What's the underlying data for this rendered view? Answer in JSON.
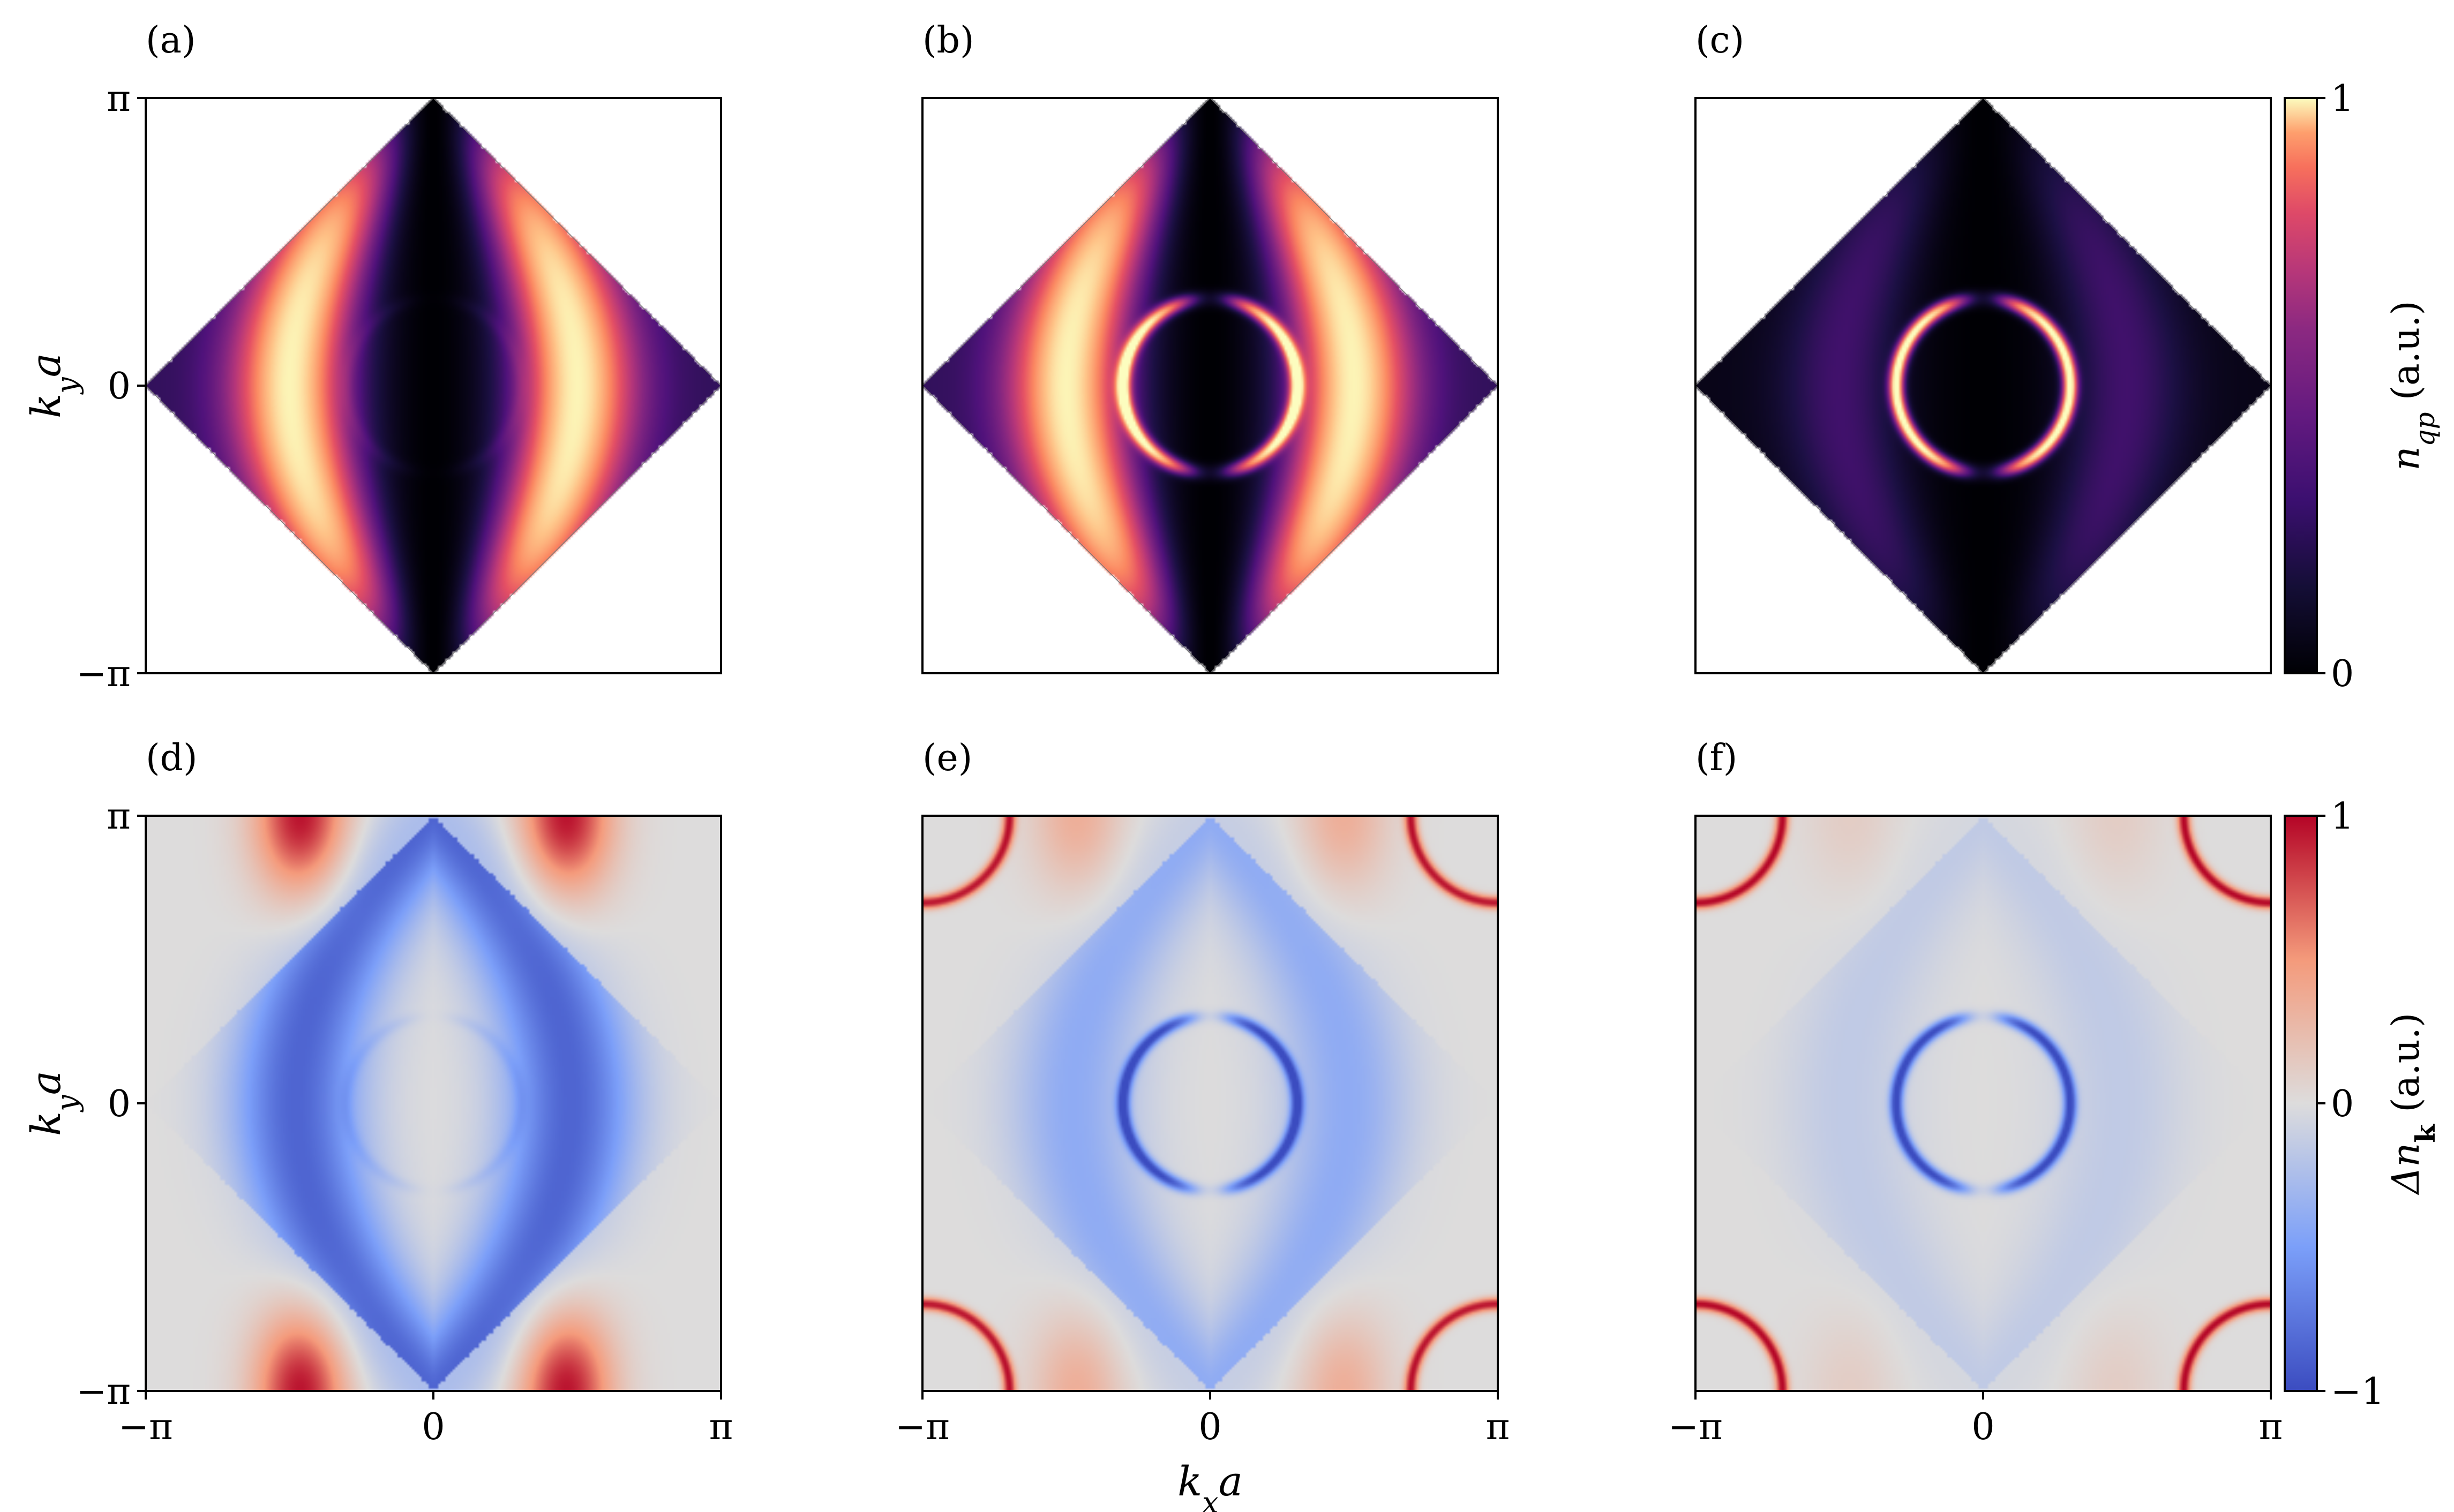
{
  "chart_data": [
    {
      "panel": "(a)",
      "type": "heatmap",
      "colormap": "magma",
      "region": "diamond",
      "xlabel": "",
      "ylabel": "k_y a",
      "xlim": [
        -3.1416,
        3.1416
      ],
      "ylim": [
        -3.1416,
        3.1416
      ],
      "x_ticks": [],
      "y_ticks": [
        "−π",
        "0",
        "π"
      ],
      "features": {
        "outer_band_peak": 1.0,
        "inner_ring_radius": 0.95,
        "inner_ring_intensity": 0.04
      }
    },
    {
      "panel": "(b)",
      "type": "heatmap",
      "colormap": "magma",
      "region": "diamond",
      "xlabel": "",
      "ylabel": "",
      "xlim": [
        -3.1416,
        3.1416
      ],
      "ylim": [
        -3.1416,
        3.1416
      ],
      "x_ticks": [],
      "y_ticks": [],
      "features": {
        "outer_band_peak": 1.0,
        "inner_ring_radius": 0.95,
        "inner_ring_intensity": 0.85
      }
    },
    {
      "panel": "(c)",
      "type": "heatmap",
      "colormap": "magma",
      "region": "diamond",
      "xlabel": "",
      "ylabel": "",
      "xlim": [
        -3.1416,
        3.1416
      ],
      "ylim": [
        -3.1416,
        3.1416
      ],
      "x_ticks": [],
      "y_ticks": [],
      "features": {
        "outer_band_peak": 0.22,
        "inner_ring_radius": 0.95,
        "inner_ring_intensity": 1.0
      },
      "colorbar": {
        "label": "n_qp (a.u.)",
        "ticks": [
          "0",
          "1"
        ],
        "range": [
          0,
          1
        ]
      }
    },
    {
      "panel": "(d)",
      "type": "heatmap",
      "colormap": "coolwarm",
      "region": "square",
      "xlabel": "",
      "ylabel": "k_y a",
      "xlim": [
        -3.1416,
        3.1416
      ],
      "ylim": [
        -3.1416,
        3.1416
      ],
      "x_ticks": [
        "−π",
        "0",
        "π"
      ],
      "y_ticks": [
        "−π",
        "0",
        "π"
      ],
      "features": {
        "red_lobe_peak": 0.95,
        "blue_band_min": -0.85,
        "inner_ring_intensity": -0.1
      }
    },
    {
      "panel": "(e)",
      "type": "heatmap",
      "colormap": "coolwarm",
      "region": "square",
      "xlabel": "k_x a",
      "ylabel": "",
      "xlim": [
        -3.1416,
        3.1416
      ],
      "ylim": [
        -3.1416,
        3.1416
      ],
      "x_ticks": [
        "−π",
        "0",
        "π"
      ],
      "y_ticks": [],
      "features": {
        "red_lobe_peak": 0.35,
        "blue_band_min": -0.4,
        "inner_ring_intensity": -0.95,
        "corner_arc_intensity": 0.95
      }
    },
    {
      "panel": "(f)",
      "type": "heatmap",
      "colormap": "coolwarm",
      "region": "square",
      "xlabel": "",
      "ylabel": "",
      "xlim": [
        -3.1416,
        3.1416
      ],
      "ylim": [
        -3.1416,
        3.1416
      ],
      "x_ticks": [
        "−π",
        "0",
        "π"
      ],
      "y_ticks": [],
      "features": {
        "red_lobe_peak": 0.12,
        "blue_band_min": -0.15,
        "inner_ring_intensity": -1.0,
        "corner_arc_intensity": 1.0
      },
      "colorbar": {
        "label": "Δn_k (a.u.)",
        "ticks": [
          "−1",
          "0",
          "1"
        ],
        "range": [
          -1,
          1
        ]
      }
    }
  ]
}
